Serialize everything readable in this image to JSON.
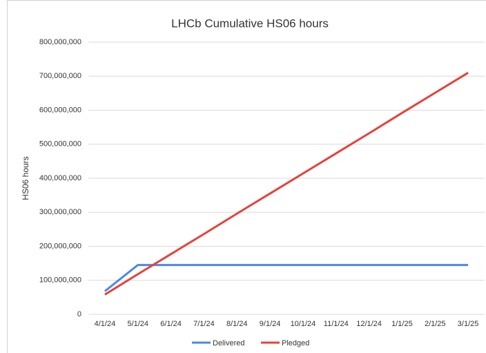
{
  "chart_data": {
    "type": "line",
    "title": "LHCb Cumulative HS06 hours",
    "y_label": "HS06 hours",
    "categories": [
      "4/1/24",
      "5/1/24",
      "6/1/24",
      "7/1/24",
      "8/1/24",
      "9/1/24",
      "10/1/24",
      "11/1/24",
      "12/1/24",
      "1/1/25",
      "2/1/25",
      "3/1/25"
    ],
    "series": [
      {
        "name": "Delivered",
        "color": "#4a86e8",
        "values": [
          68000000,
          145000000,
          145000000,
          145000000,
          145000000,
          145000000,
          145000000,
          145000000,
          145000000,
          145000000,
          145000000,
          145000000
        ]
      },
      {
        "name": "Pledged",
        "color": "#e8403a",
        "values": [
          58000000,
          118000000,
          177000000,
          236000000,
          296000000,
          355000000,
          414000000,
          473000000,
          532000000,
          592000000,
          651000000,
          710000000
        ]
      }
    ],
    "ylim": [
      0,
      800000000
    ],
    "yticks": [
      0,
      {
        "value": 100000000,
        "label": "100,000,000"
      },
      {
        "value": 200000000,
        "label": "200,000,000"
      },
      {
        "value": 300000000,
        "label": "300,000,000"
      },
      {
        "value": 400000000,
        "label": "400,000,000"
      },
      {
        "value": 500000000,
        "label": "500,000,000"
      },
      {
        "value": 600000000,
        "label": "600,000,000"
      },
      {
        "value": 700000000,
        "label": "700,000,000"
      },
      {
        "value": 800000000,
        "label": "800,000,000"
      }
    ],
    "grid": true,
    "legend": "bottom"
  }
}
